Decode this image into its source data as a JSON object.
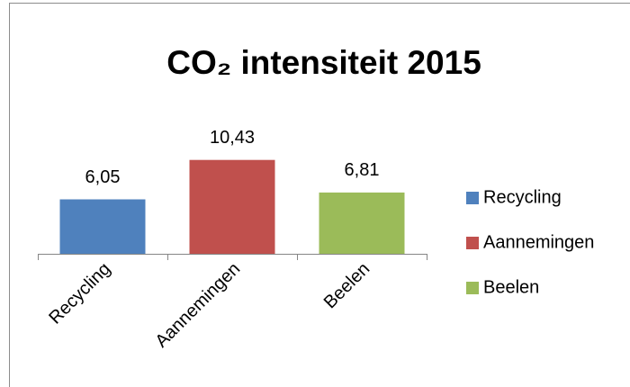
{
  "chart_data": {
    "type": "bar",
    "title": "CO₂ intensiteit 2015",
    "categories": [
      "Recycling",
      "Aannemingen",
      "Beelen"
    ],
    "values": [
      6.05,
      10.43,
      6.81
    ],
    "value_labels": [
      "6,05",
      "10,43",
      "6,81"
    ],
    "colors": [
      "#4f81bd",
      "#c0504d",
      "#9bbb59"
    ],
    "ylim": [
      0,
      12
    ],
    "legend": "right"
  }
}
